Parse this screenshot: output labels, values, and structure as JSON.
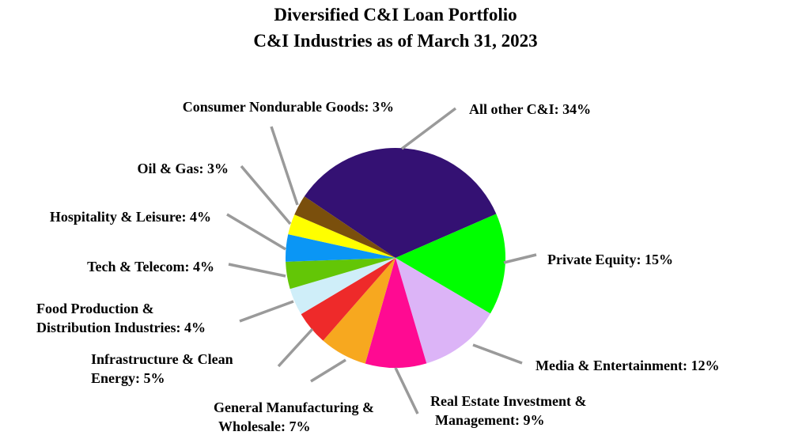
{
  "chart_data": {
    "type": "pie",
    "title": "Diversified C&I Loan Portfolio",
    "subtitle": "C&I Industries as of March 31, 2023",
    "slices": [
      {
        "label": [
          "All other C&I: 34%"
        ],
        "value": 34,
        "color": "#341173"
      },
      {
        "label": [
          "Private Equity: 15%"
        ],
        "value": 15,
        "color": "#00ff00"
      },
      {
        "label": [
          "Media & Entertainment: 12%"
        ],
        "value": 12,
        "color": "#dcb4f7"
      },
      {
        "label": [
          "Real Estate Investment &",
          "Management: 9%"
        ],
        "value": 9,
        "color": "#ff0a92"
      },
      {
        "label": [
          "General Manufacturing &",
          "Wholesale: 7%"
        ],
        "value": 7,
        "color": "#f7a81f"
      },
      {
        "label": [
          "Infrastructure & Clean",
          "Energy: 5%"
        ],
        "value": 5,
        "color": "#ee2a2a"
      },
      {
        "label": [
          "Food Production &",
          "Distribution Industries: 4%"
        ],
        "value": 4,
        "color": "#cfeef9"
      },
      {
        "label": [
          "Tech & Telecom: 4%"
        ],
        "value": 4,
        "color": "#63c606"
      },
      {
        "label": [
          "Hospitality & Leisure: 4%"
        ],
        "value": 4,
        "color": "#0a96f5"
      },
      {
        "label": [
          "Oil & Gas: 3%"
        ],
        "value": 3,
        "color": "#ffff00"
      },
      {
        "label": [
          "Consumer Nondurable Goods: 3%"
        ],
        "value": 3,
        "color": "#7a4f0c"
      }
    ],
    "leader_line_color": "#9a9a9a"
  }
}
